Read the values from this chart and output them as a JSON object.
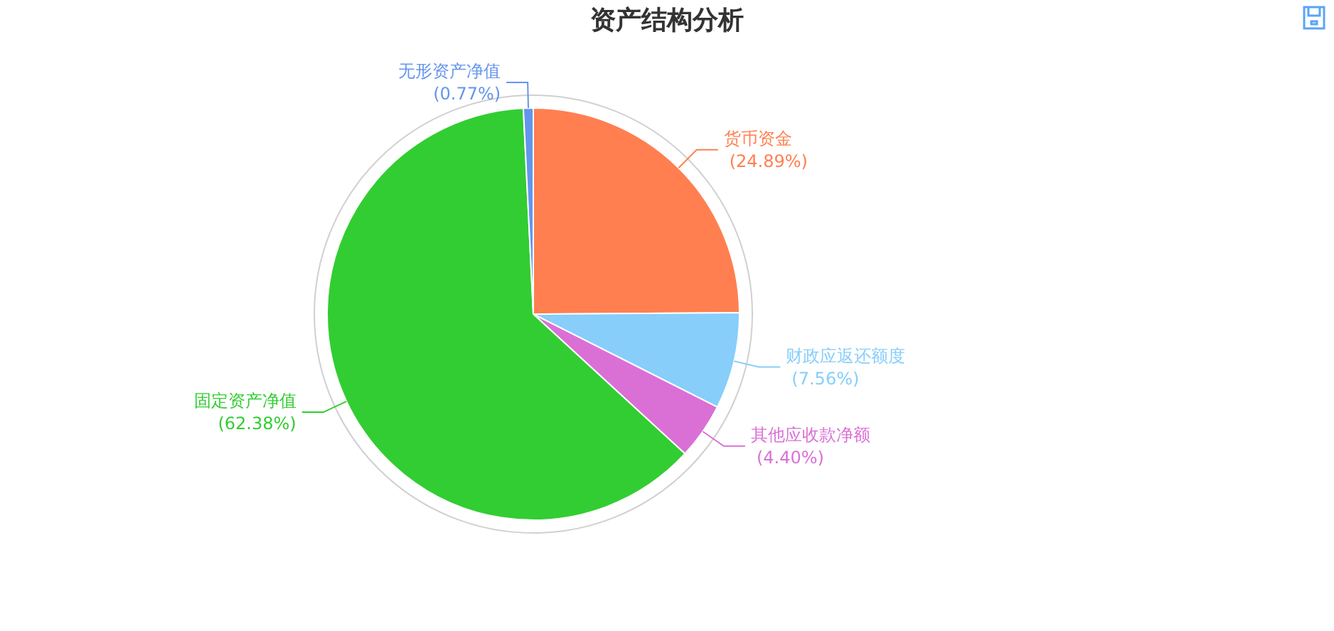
{
  "chart_data": {
    "type": "pie",
    "title": "资产结构分析",
    "categories": [
      "货币资金",
      "财政应返还额度",
      "其他应收款净额",
      "固定资产净值",
      "无形资产净值"
    ],
    "values": [
      24.89,
      7.56,
      4.4,
      62.38,
      0.77
    ],
    "colors": [
      "#ff7f50",
      "#87cefa",
      "#da70d6",
      "#32cd32",
      "#6495ed"
    ],
    "value_labels": [
      "(24.89%)",
      "(7.56%)",
      "(4.40%)",
      "(62.38%)",
      "(0.77%)"
    ]
  }
}
